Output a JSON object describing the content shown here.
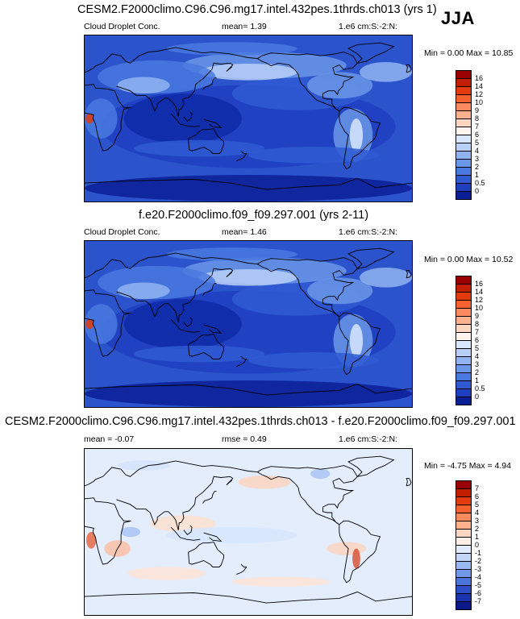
{
  "season": "JJA",
  "panels": [
    {
      "id": "p1",
      "title": "CESM2.F2000climo.C96.C96.mg17.intel.432pes.1thrds.ch013 (yrs 1)",
      "var_label": "Cloud Droplet Conc.",
      "stat1": "mean=   1.39",
      "stat2": "",
      "units": "1.e6 cm:S:-2:N:",
      "minmax": "Min =  0.00 Max = 10.85",
      "colorbar_ticks": [
        "16",
        "14",
        "12",
        "10",
        "9",
        "8",
        "7",
        "6",
        "5",
        "4",
        "3",
        "2",
        "1",
        "0.5",
        "0"
      ],
      "colors": [
        "#990000",
        "#c21e00",
        "#e33b0d",
        "#f5602f",
        "#fb8a5e",
        "#fdb08e",
        "#fdd6bf",
        "#fff5ee",
        "#d8e6fb",
        "#b8d0f7",
        "#90b4f0",
        "#6b97e8",
        "#4a79e0",
        "#2f5ad2",
        "#1e3fc0",
        "#0a1f96"
      ]
    },
    {
      "id": "p2",
      "title": "f.e20.F2000climo.f09_f09.297.001 (yrs 2-11)",
      "var_label": "Cloud Droplet Conc.",
      "stat1": "mean=   1.46",
      "stat2": "",
      "units": "1.e6 cm:S:-2:N:",
      "minmax": "Min =  0.00 Max = 10.52",
      "colorbar_ticks": [
        "16",
        "14",
        "12",
        "10",
        "9",
        "8",
        "7",
        "6",
        "5",
        "4",
        "3",
        "2",
        "1",
        "0.5",
        "0"
      ],
      "colors": [
        "#990000",
        "#c21e00",
        "#e33b0d",
        "#f5602f",
        "#fb8a5e",
        "#fdb08e",
        "#fdd6bf",
        "#fff5ee",
        "#d8e6fb",
        "#b8d0f7",
        "#90b4f0",
        "#6b97e8",
        "#4a79e0",
        "#2f5ad2",
        "#1e3fc0",
        "#0a1f96"
      ]
    },
    {
      "id": "p3",
      "title": "CESM2.F2000climo.C96.C96.mg17.intel.432pes.1thrds.ch013 - f.e20.F2000climo.f09_f09.297.001",
      "var_label": "",
      "stat1": "mean =  -0.07",
      "stat2": "rmse =   0.49",
      "units": "1.e6 cm:S:-2:N:",
      "minmax": "Min = -4.75 Max =  4.94",
      "colorbar_ticks": [
        "7",
        "6",
        "5",
        "4",
        "3",
        "2",
        "1",
        "0",
        "-1",
        "-2",
        "-3",
        "-4",
        "-5",
        "-6",
        "-7"
      ],
      "colors": [
        "#990000",
        "#c21e00",
        "#e33b0d",
        "#f5602f",
        "#fb8a5e",
        "#fdb08e",
        "#fdd6bf",
        "#fff0e6",
        "#e0ecfb",
        "#c3d6f7",
        "#98b8f0",
        "#6f98e6",
        "#4a74db",
        "#2c4fc8",
        "#1a34b0",
        "#0a1a8a"
      ]
    }
  ]
}
